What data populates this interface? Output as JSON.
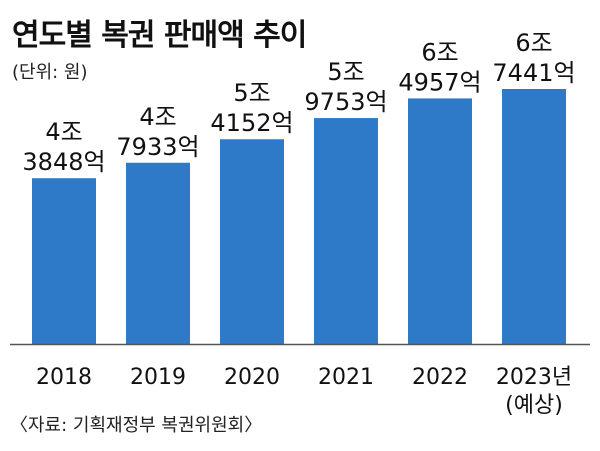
{
  "title": "연도별 복권 판매액 추이",
  "unit_note": "(단위: 원)",
  "source": "〈자료: 기획재정부 복권위원회〉",
  "chart_data": {
    "type": "bar",
    "categories": [
      "2018",
      "2019",
      "2020",
      "2021",
      "2022",
      "2023년"
    ],
    "category_sublabels": [
      "",
      "",
      "",
      "",
      "",
      "(예상)"
    ],
    "values": [
      43848,
      47933,
      54152,
      59753,
      64957,
      67441
    ],
    "value_unit": "억원",
    "data_labels": [
      [
        "4조",
        "3848억"
      ],
      [
        "4조",
        "7933억"
      ],
      [
        "5조",
        "4152억"
      ],
      [
        "5조",
        "9753억"
      ],
      [
        "6조",
        "4957억"
      ],
      [
        "6조",
        "7441억"
      ]
    ],
    "bar_color": "#2f7ac8",
    "axis_color": "#555555",
    "grid": false
  }
}
